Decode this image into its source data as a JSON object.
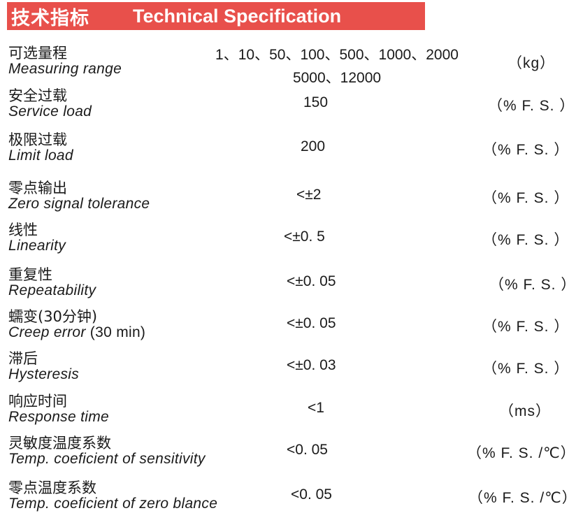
{
  "header": {
    "title_cn": "技术指标",
    "title_en": "Technical Specification"
  },
  "rows": [
    {
      "cn": "可选量程",
      "en": "Measuring range",
      "value_line1": "1、10、50、100、500、1000、2000",
      "value_line2": "5000、12000",
      "unit": "（kg）"
    },
    {
      "cn": "安全过载",
      "en": "Service load",
      "value": "150",
      "unit": "（% F. S. ）"
    },
    {
      "cn": "极限过载",
      "en": "Limit load",
      "value": "200",
      "unit": "（% F. S. ）"
    },
    {
      "cn": "零点输出",
      "en": "Zero signal tolerance",
      "value": "<±2",
      "unit": "（% F. S. ）"
    },
    {
      "cn": "线性",
      "en": "Linearity",
      "value": "<±0. 5",
      "unit": "（% F. S. ）"
    },
    {
      "cn": "重复性",
      "en": "Repeatability",
      "value": "<±0. 05",
      "unit": "（% F. S. ）"
    },
    {
      "cn": "蠕变(30分钟)",
      "en": "Creep error",
      "en_suffix": " (30 min)",
      "value": "<±0. 05",
      "unit": "（% F. S. ）"
    },
    {
      "cn": "滞后",
      "en": "Hysteresis",
      "value": "<±0. 03",
      "unit": "（% F. S. ）"
    },
    {
      "cn": "响应时间",
      "en": "Response time",
      "value": "<1",
      "unit": "（ms）"
    },
    {
      "cn": "灵敏度温度系数",
      "en": "Temp. coeficient of sensitivity",
      "value": "<0. 05",
      "unit": "（% F. S. /℃）"
    },
    {
      "cn": "零点温度系数",
      "en": "Temp. coeficient of zero blance",
      "value": "<0. 05",
      "unit": "（% F. S. /℃）"
    }
  ]
}
